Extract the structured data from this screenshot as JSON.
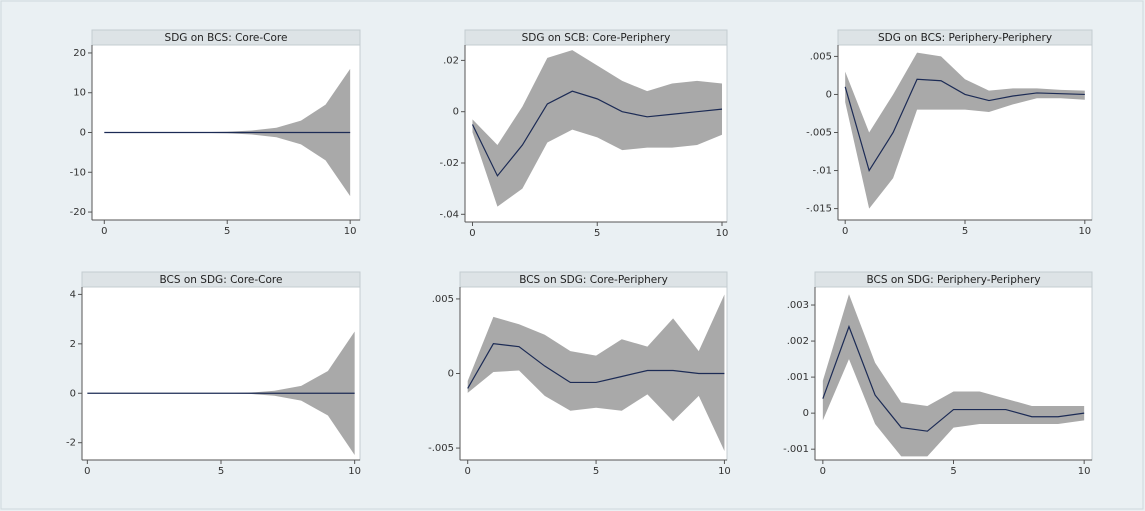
{
  "chart_data": [
    {
      "type": "line",
      "title": "SDG on BCS: Core-Core",
      "x": [
        0,
        1,
        2,
        3,
        4,
        5,
        6,
        7,
        8,
        9,
        10
      ],
      "values": [
        0,
        0,
        0,
        0,
        0,
        0,
        0,
        0,
        0,
        0,
        0
      ],
      "upper": [
        0,
        0,
        0,
        0.05,
        0.1,
        0.2,
        0.5,
        1.2,
        3,
        7,
        16
      ],
      "lower": [
        0,
        0,
        0,
        -0.05,
        -0.1,
        -0.2,
        -0.5,
        -1.2,
        -3,
        -7,
        -16
      ],
      "line_color": "#1c2b55",
      "band_color": "#a9a9a9",
      "xlim": [
        -0.5,
        10.4
      ],
      "xticks": [
        0,
        5,
        10
      ],
      "ylim": [
        -22,
        22
      ],
      "yticks": [
        -20,
        -10,
        0,
        10,
        20
      ]
    },
    {
      "type": "line",
      "title": "SDG on SCB: Core-Periphery",
      "x": [
        0,
        1,
        2,
        3,
        4,
        5,
        6,
        7,
        8,
        9,
        10
      ],
      "values": [
        -0.005,
        -0.025,
        -0.013,
        0.003,
        0.008,
        0.005,
        0,
        -0.002,
        -0.001,
        0,
        0.001
      ],
      "upper": [
        -0.003,
        -0.013,
        0.002,
        0.021,
        0.024,
        0.018,
        0.012,
        0.008,
        0.011,
        0.012,
        0.011
      ],
      "lower": [
        -0.008,
        -0.037,
        -0.03,
        -0.012,
        -0.007,
        -0.01,
        -0.015,
        -0.014,
        -0.014,
        -0.013,
        -0.009
      ],
      "line_color": "#1c2b55",
      "band_color": "#a9a9a9",
      "xlim": [
        -0.3,
        10.2
      ],
      "xticks": [
        0,
        5,
        10
      ],
      "ylim": [
        -0.043,
        0.026
      ],
      "yticks": [
        {
          "value": -0.04,
          "label": "-.04"
        },
        {
          "value": -0.02,
          "label": "-.02"
        },
        0,
        {
          "value": 0.02,
          "label": ".02"
        }
      ]
    },
    {
      "type": "line",
      "title": "SDG on BCS: Periphery-Periphery",
      "x": [
        0,
        1,
        2,
        3,
        4,
        5,
        6,
        7,
        8,
        9,
        10
      ],
      "values": [
        0.001,
        -0.01,
        -0.005,
        0.002,
        0.0018,
        0,
        -0.0008,
        -0.0002,
        0.0002,
        0.0001,
        0
      ],
      "upper": [
        0.003,
        -0.005,
        0,
        0.0055,
        0.005,
        0.002,
        0.0005,
        0.0008,
        0.0008,
        0.0006,
        0.0005
      ],
      "lower": [
        -0.001,
        -0.015,
        -0.011,
        -0.002,
        -0.002,
        -0.002,
        -0.0023,
        -0.0013,
        -0.0005,
        -0.0005,
        -0.0007
      ],
      "line_color": "#1c2b55",
      "band_color": "#a9a9a9",
      "xlim": [
        -0.3,
        10.3
      ],
      "xticks": [
        0,
        5,
        10
      ],
      "ylim": [
        -0.0165,
        0.0065
      ],
      "yticks": [
        {
          "value": -0.015,
          "label": "-.015"
        },
        {
          "value": -0.01,
          "label": "-.01"
        },
        {
          "value": -0.005,
          "label": "-.005"
        },
        0,
        {
          "value": 0.005,
          "label": ".005"
        }
      ]
    },
    {
      "type": "line",
      "title": "BCS on SDG: Core-Core",
      "x": [
        0,
        1,
        2,
        3,
        4,
        5,
        6,
        7,
        8,
        9,
        10
      ],
      "values": [
        0,
        0,
        0,
        0,
        0,
        0,
        0,
        0,
        0,
        0,
        0
      ],
      "upper": [
        0,
        0,
        0,
        0,
        0,
        0,
        0.02,
        0.1,
        0.3,
        0.9,
        2.5
      ],
      "lower": [
        0,
        0,
        0,
        0,
        0,
        0,
        -0.02,
        -0.1,
        -0.3,
        -0.9,
        -2.5
      ],
      "line_color": "#1c2b55",
      "band_color": "#a9a9a9",
      "xlim": [
        -0.2,
        10.2
      ],
      "xticks": [
        0,
        5,
        10
      ],
      "ylim": [
        -2.7,
        4.3
      ],
      "yticks": [
        -2,
        0,
        2,
        4
      ]
    },
    {
      "type": "line",
      "title": "BCS on SDG: Core-Periphery",
      "x": [
        0,
        1,
        2,
        3,
        4,
        5,
        6,
        7,
        8,
        9,
        10
      ],
      "values": [
        -0.001,
        0.002,
        0.0018,
        0.0005,
        -0.0006,
        -0.0006,
        -0.0002,
        0.0002,
        0.0002,
        0,
        0
      ],
      "upper": [
        -0.0005,
        0.0038,
        0.0033,
        0.0026,
        0.0015,
        0.0012,
        0.0023,
        0.0018,
        0.0037,
        0.0015,
        0.0053
      ],
      "lower": [
        -0.0013,
        0.0001,
        0.0002,
        -0.0015,
        -0.0025,
        -0.0023,
        -0.0025,
        -0.0014,
        -0.0032,
        -0.0015,
        -0.0052
      ],
      "line_color": "#1c2b55",
      "band_color": "#a9a9a9",
      "xlim": [
        -0.3,
        10.1
      ],
      "xticks": [
        0,
        5,
        10
      ],
      "ylim": [
        -0.0058,
        0.0058
      ],
      "yticks": [
        {
          "value": -0.005,
          "label": "-.005"
        },
        0,
        {
          "value": 0.005,
          "label": ".005"
        }
      ]
    },
    {
      "type": "line",
      "title": "BCS on SDG: Periphery-Periphery",
      "x": [
        0,
        1,
        2,
        3,
        4,
        5,
        6,
        7,
        8,
        9,
        10
      ],
      "values": [
        0.0004,
        0.0024,
        0.0005,
        -0.0004,
        -0.0005,
        0.0001,
        0.0001,
        0.0001,
        -0.0001,
        -0.0001,
        0
      ],
      "upper": [
        0.0009,
        0.0033,
        0.0014,
        0.0003,
        0.0002,
        0.0006,
        0.0006,
        0.0004,
        0.0002,
        0.0002,
        0.0002
      ],
      "lower": [
        -0.0002,
        0.0015,
        -0.0003,
        -0.0012,
        -0.0012,
        -0.0004,
        -0.0003,
        -0.0003,
        -0.0003,
        -0.0003,
        -0.0002
      ],
      "line_color": "#1c2b55",
      "band_color": "#a9a9a9",
      "xlim": [
        -0.3,
        10.3
      ],
      "xticks": [
        0,
        5,
        10
      ],
      "ylim": [
        -0.0013,
        0.0035
      ],
      "yticks": [
        {
          "value": -0.001,
          "label": "-.001"
        },
        0,
        {
          "value": 0.001,
          "label": ".001"
        },
        {
          "value": 0.002,
          "label": ".002"
        },
        {
          "value": 0.003,
          "label": ".003"
        }
      ]
    }
  ]
}
